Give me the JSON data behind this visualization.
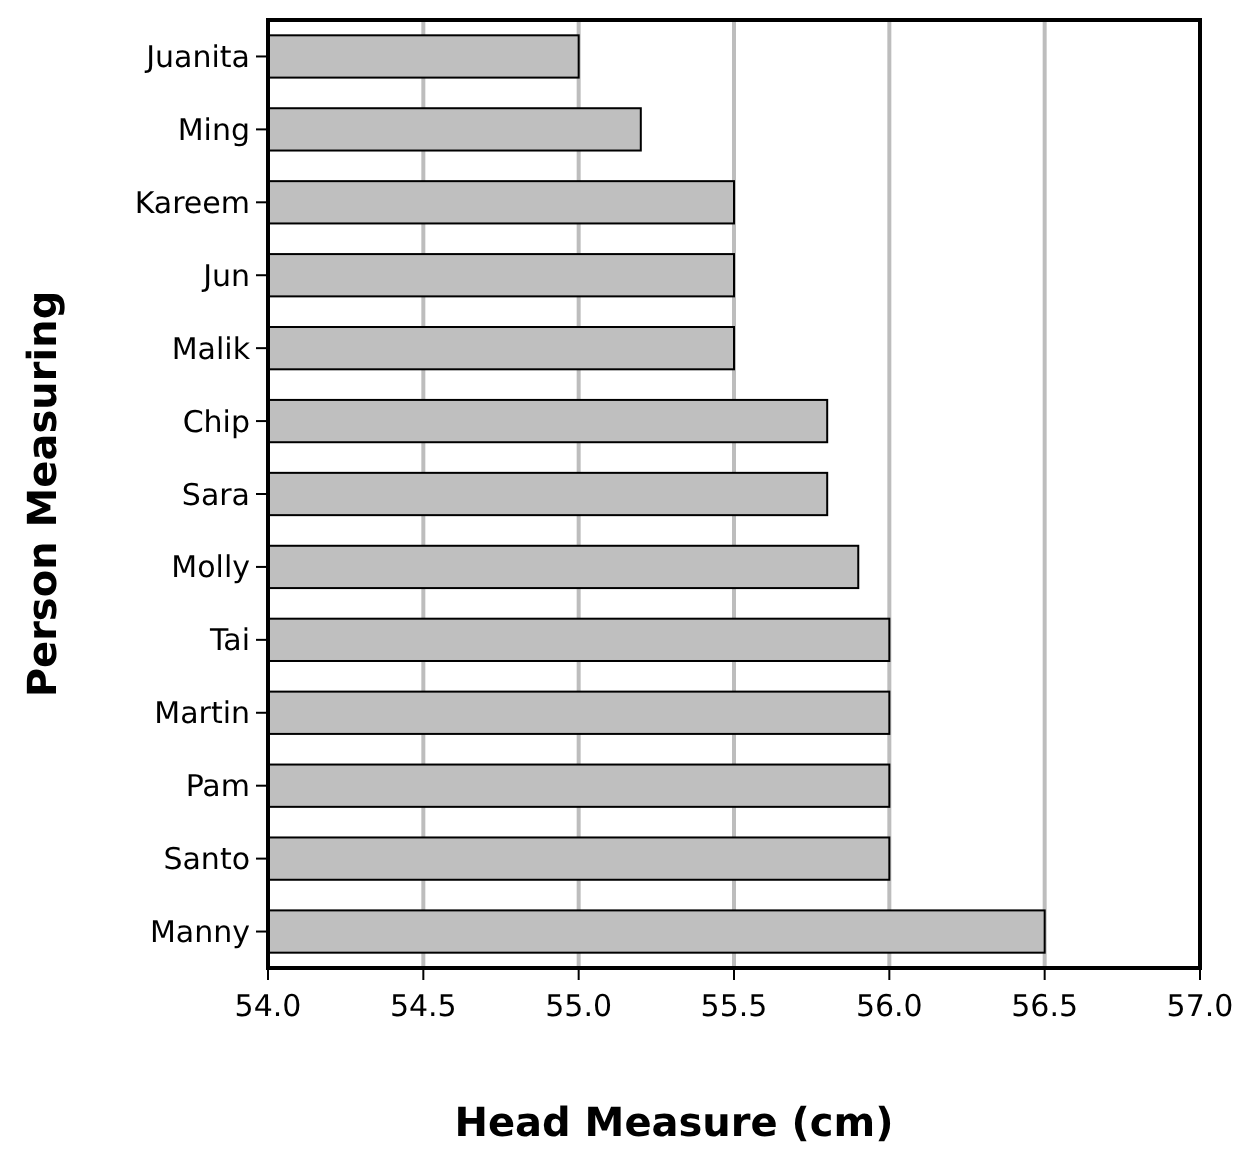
{
  "chart_data": {
    "type": "bar",
    "orientation": "horizontal",
    "xlabel": "Head Measure (cm)",
    "ylabel": "Person Measuring",
    "categories": [
      "Juanita",
      "Ming",
      "Kareem",
      "Jun",
      "Malik",
      "Chip",
      "Sara",
      "Molly",
      "Tai",
      "Martin",
      "Pam",
      "Santo",
      "Manny"
    ],
    "values": [
      55.0,
      55.2,
      55.5,
      55.5,
      55.5,
      55.8,
      55.8,
      55.9,
      56.0,
      56.0,
      56.0,
      56.0,
      56.5
    ],
    "color": "#bfbfbf",
    "xlim": [
      54,
      57
    ],
    "xticks": [
      {
        "value": 54,
        "label": "54.0"
      },
      {
        "value": 54.5,
        "label": "54.5"
      },
      {
        "value": 55,
        "label": "55.0"
      },
      {
        "value": 55.5,
        "label": "55.5"
      },
      {
        "value": 56,
        "label": "56.0"
      },
      {
        "value": 56.5,
        "label": "56.5"
      },
      {
        "value": 57,
        "label": "57.0"
      }
    ],
    "grid": "x"
  }
}
